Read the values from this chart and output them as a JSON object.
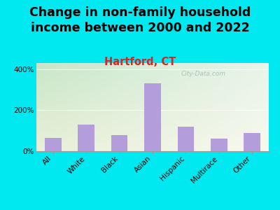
{
  "title": "Change in non-family household\nincome between 2000 and 2022",
  "subtitle": "Hartford, CT",
  "categories": [
    "All",
    "White",
    "Black",
    "Asian",
    "Hispanic",
    "Multirace",
    "Other"
  ],
  "values": [
    65,
    130,
    80,
    330,
    120,
    60,
    90
  ],
  "bar_color": "#b39ddb",
  "title_fontsize": 12.5,
  "subtitle_fontsize": 10.5,
  "subtitle_color": "#dd2222",
  "title_color": "#000000",
  "background_outer": "#00e8f0",
  "yticks": [
    0,
    200,
    400
  ],
  "ylim": [
    0,
    430
  ],
  "watermark": "City-Data.com",
  "tick_label_fontsize": 7.5,
  "grad_top_left": "#c8e6c9",
  "grad_bottom_right": "#f5f5e8"
}
